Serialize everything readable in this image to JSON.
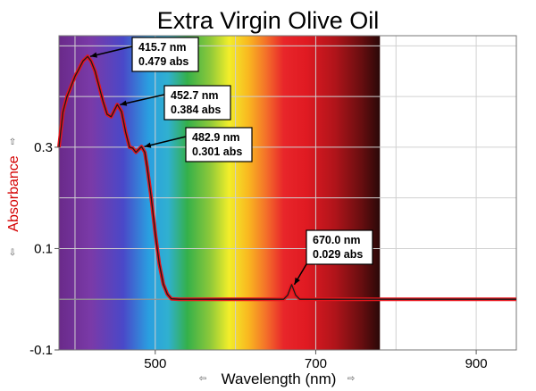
{
  "chart_data": {
    "type": "line",
    "title": "Extra Virgin Olive Oil",
    "xlabel": "Wavelength (nm)",
    "ylabel": "Absorbance",
    "xlim": [
      380,
      950
    ],
    "ylim": [
      -0.1,
      0.52
    ],
    "x_ticks": [
      500,
      700,
      900
    ],
    "y_ticks": [
      -0.1,
      0.1,
      0.3
    ],
    "grid": true,
    "background": "visible spectrum color band from 380 to 780 nm",
    "colors": {
      "series_outer": "#e8141b",
      "series_inner": "#1a1a1a",
      "ylabel": "#d40000"
    },
    "series": [
      {
        "x": [
          380,
          385,
          390,
          395,
          400,
          405,
          410,
          415.7,
          420,
          425,
          430,
          435,
          440,
          445,
          452.7,
          458,
          463,
          468,
          472,
          476,
          482.9,
          487,
          490,
          495,
          500,
          505,
          510,
          515,
          520,
          530,
          560,
          600,
          640,
          660,
          665,
          670,
          675,
          680,
          700,
          750,
          800,
          850,
          900,
          950
        ],
        "y": [
          0.3,
          0.37,
          0.4,
          0.42,
          0.44,
          0.455,
          0.47,
          0.479,
          0.47,
          0.45,
          0.42,
          0.39,
          0.365,
          0.36,
          0.384,
          0.37,
          0.33,
          0.3,
          0.298,
          0.29,
          0.301,
          0.29,
          0.26,
          0.2,
          0.13,
          0.07,
          0.03,
          0.01,
          0.001,
          0.0,
          0.0,
          0.0,
          0.0,
          0.0,
          0.008,
          0.029,
          0.008,
          0.0,
          0.0,
          0.0,
          0.0,
          0.0,
          0.0,
          0.0
        ]
      }
    ],
    "annotations": [
      {
        "line1": "415.7 nm",
        "line2": "0.479 abs",
        "x": 415.7,
        "y": 0.479
      },
      {
        "line1": "452.7 nm",
        "line2": "0.384 abs",
        "x": 452.7,
        "y": 0.384
      },
      {
        "line1": "482.9 nm",
        "line2": "0.301 abs",
        "x": 482.9,
        "y": 0.301
      },
      {
        "line1": "670.0 nm",
        "line2": "0.029 abs",
        "x": 670.0,
        "y": 0.029
      }
    ]
  }
}
